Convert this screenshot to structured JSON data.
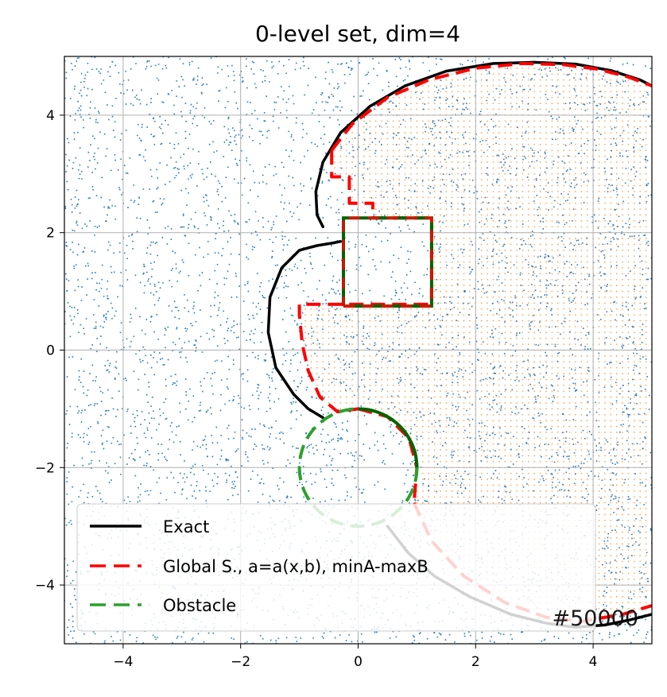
{
  "chart_data": {
    "type": "line",
    "title": "0-level set, dim=4",
    "xlabel": "",
    "ylabel": "",
    "xlim": [
      -5,
      5
    ],
    "ylim": [
      -5,
      5
    ],
    "xticks": [
      -4,
      -2,
      0,
      2,
      4
    ],
    "yticks": [
      4,
      2,
      0,
      -2,
      -4
    ],
    "xtick_labels": [
      "−4",
      "−2",
      "0",
      "2",
      "4"
    ],
    "ytick_labels": [
      "4",
      "2",
      "0",
      "−2",
      "−4"
    ],
    "grid": true,
    "legend_position": "lower-left",
    "annotation": "#50000",
    "colors": {
      "exact": "#000000",
      "global": "#ff0000",
      "obstacle_dark": "#006400",
      "obstacle_legend": "#2ca02c",
      "sample_points": "#1f77b4",
      "inside_points": "#ff7f0e",
      "grid": "#b0b0b0"
    },
    "series": [
      {
        "name": "Exact",
        "style": "solid",
        "segments": [
          [
            [
              -0.6,
              2.1
            ],
            [
              -0.7,
              2.3
            ],
            [
              -0.72,
              2.7
            ],
            [
              -0.6,
              3.2
            ],
            [
              -0.3,
              3.7
            ],
            [
              0.2,
              4.15
            ],
            [
              0.8,
              4.5
            ],
            [
              1.5,
              4.75
            ],
            [
              2.3,
              4.88
            ],
            [
              3.0,
              4.9
            ],
            [
              3.7,
              4.87
            ],
            [
              4.3,
              4.76
            ],
            [
              4.8,
              4.6
            ],
            [
              5.0,
              4.5
            ]
          ],
          [
            [
              -0.3,
              1.85
            ],
            [
              -0.45,
              1.82
            ],
            [
              -0.7,
              1.78
            ],
            [
              -1.0,
              1.7
            ],
            [
              -1.3,
              1.4
            ],
            [
              -1.5,
              0.9
            ],
            [
              -1.53,
              0.3
            ],
            [
              -1.4,
              -0.3
            ],
            [
              -1.1,
              -0.75
            ],
            [
              -0.85,
              -1.0
            ],
            [
              -0.6,
              -1.15
            ]
          ],
          [
            [
              0.5,
              -3.0
            ],
            [
              0.85,
              -3.45
            ],
            [
              1.3,
              -3.85
            ],
            [
              1.9,
              -4.2
            ],
            [
              2.6,
              -4.5
            ],
            [
              3.2,
              -4.65
            ],
            [
              3.7,
              -4.72
            ],
            [
              4.2,
              -4.68
            ],
            [
              4.6,
              -4.6
            ],
            [
              5.0,
              -4.5
            ]
          ]
        ]
      },
      {
        "name": "Global S., a=a(x,b), minA-maxB",
        "style": "dashed",
        "segments": [
          [
            [
              -0.45,
              3.4
            ],
            [
              -0.1,
              3.85
            ],
            [
              0.5,
              4.3
            ],
            [
              1.2,
              4.6
            ],
            [
              2.0,
              4.8
            ],
            [
              2.8,
              4.88
            ],
            [
              3.5,
              4.86
            ],
            [
              4.1,
              4.78
            ],
            [
              4.6,
              4.65
            ],
            [
              5.0,
              4.5
            ]
          ],
          [
            [
              -0.45,
              3.4
            ],
            [
              -0.45,
              2.95
            ],
            [
              -0.15,
              2.95
            ],
            [
              -0.15,
              2.5
            ],
            [
              0.25,
              2.5
            ],
            [
              0.25,
              2.25
            ],
            [
              1.25,
              2.25
            ],
            [
              1.25,
              0.78
            ],
            [
              -1.0,
              0.78
            ],
            [
              -1.0,
              0.6
            ],
            [
              -0.95,
              0.1
            ],
            [
              -0.85,
              -0.35
            ],
            [
              -0.65,
              -0.8
            ],
            [
              -0.35,
              -1.05
            ],
            [
              0.0,
              -1.0
            ]
          ],
          [
            [
              0.0,
              -1.0
            ],
            [
              0.5,
              -1.134
            ],
            [
              0.866,
              -1.5
            ],
            [
              1.0,
              -2.0
            ],
            [
              0.95,
              -2.6
            ]
          ],
          [
            [
              0.95,
              -2.6
            ],
            [
              1.25,
              -3.25
            ],
            [
              1.8,
              -3.85
            ],
            [
              2.5,
              -4.3
            ],
            [
              3.2,
              -4.55
            ],
            [
              3.8,
              -4.62
            ],
            [
              4.5,
              -4.5
            ],
            [
              5.0,
              -4.35
            ]
          ]
        ]
      },
      {
        "name": "Obstacle",
        "style": "dashed",
        "shapes": {
          "square": [
            [
              -0.25,
              0.75
            ],
            [
              1.25,
              0.75
            ],
            [
              1.25,
              2.25
            ],
            [
              -0.25,
              2.25
            ]
          ],
          "circle": {
            "center": [
              0,
              -2
            ],
            "radius": 1
          }
        }
      }
    ]
  }
}
